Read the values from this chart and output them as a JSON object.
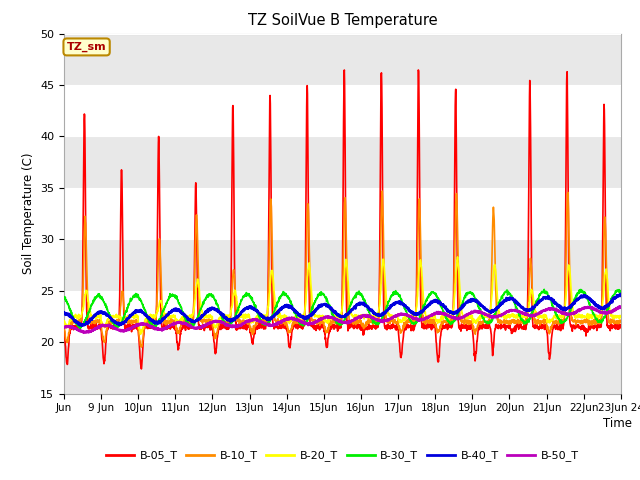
{
  "title": "TZ SoilVue B Temperature",
  "ylabel": "Soil Temperature (C)",
  "xlabel": "Time",
  "annotation_text": "TZ_sm",
  "annotation_bg": "#FFFFCC",
  "annotation_border": "#BB8800",
  "annotation_text_color": "#AA0000",
  "ylim": [
    15,
    50
  ],
  "yticks": [
    15,
    20,
    25,
    30,
    35,
    40,
    45,
    50
  ],
  "x_labels": [
    "Jun",
    "9 Jun",
    "10Jun",
    "11Jun",
    "12Jun",
    "13Jun",
    "14Jun",
    "15Jun",
    "16Jun",
    "17Jun",
    "18Jun",
    "19Jun",
    "20Jun",
    "21Jun",
    "22Jun",
    "23Jun 24"
  ],
  "series": {
    "B-05_T": {
      "color": "#FF0000",
      "lw": 1.2
    },
    "B-10_T": {
      "color": "#FF8C00",
      "lw": 1.2
    },
    "B-20_T": {
      "color": "#FFFF00",
      "lw": 1.2
    },
    "B-30_T": {
      "color": "#00EE00",
      "lw": 1.2
    },
    "B-40_T": {
      "color": "#0000DD",
      "lw": 1.8
    },
    "B-50_T": {
      "color": "#BB00BB",
      "lw": 1.8
    }
  },
  "legend_order": [
    "B-05_T",
    "B-10_T",
    "B-20_T",
    "B-30_T",
    "B-40_T",
    "B-50_T"
  ],
  "fig_bg": "#FFFFFF",
  "plot_bg": "#FFFFFF",
  "band_color": "#E8E8E8",
  "n_days": 15,
  "points_per_day": 144
}
